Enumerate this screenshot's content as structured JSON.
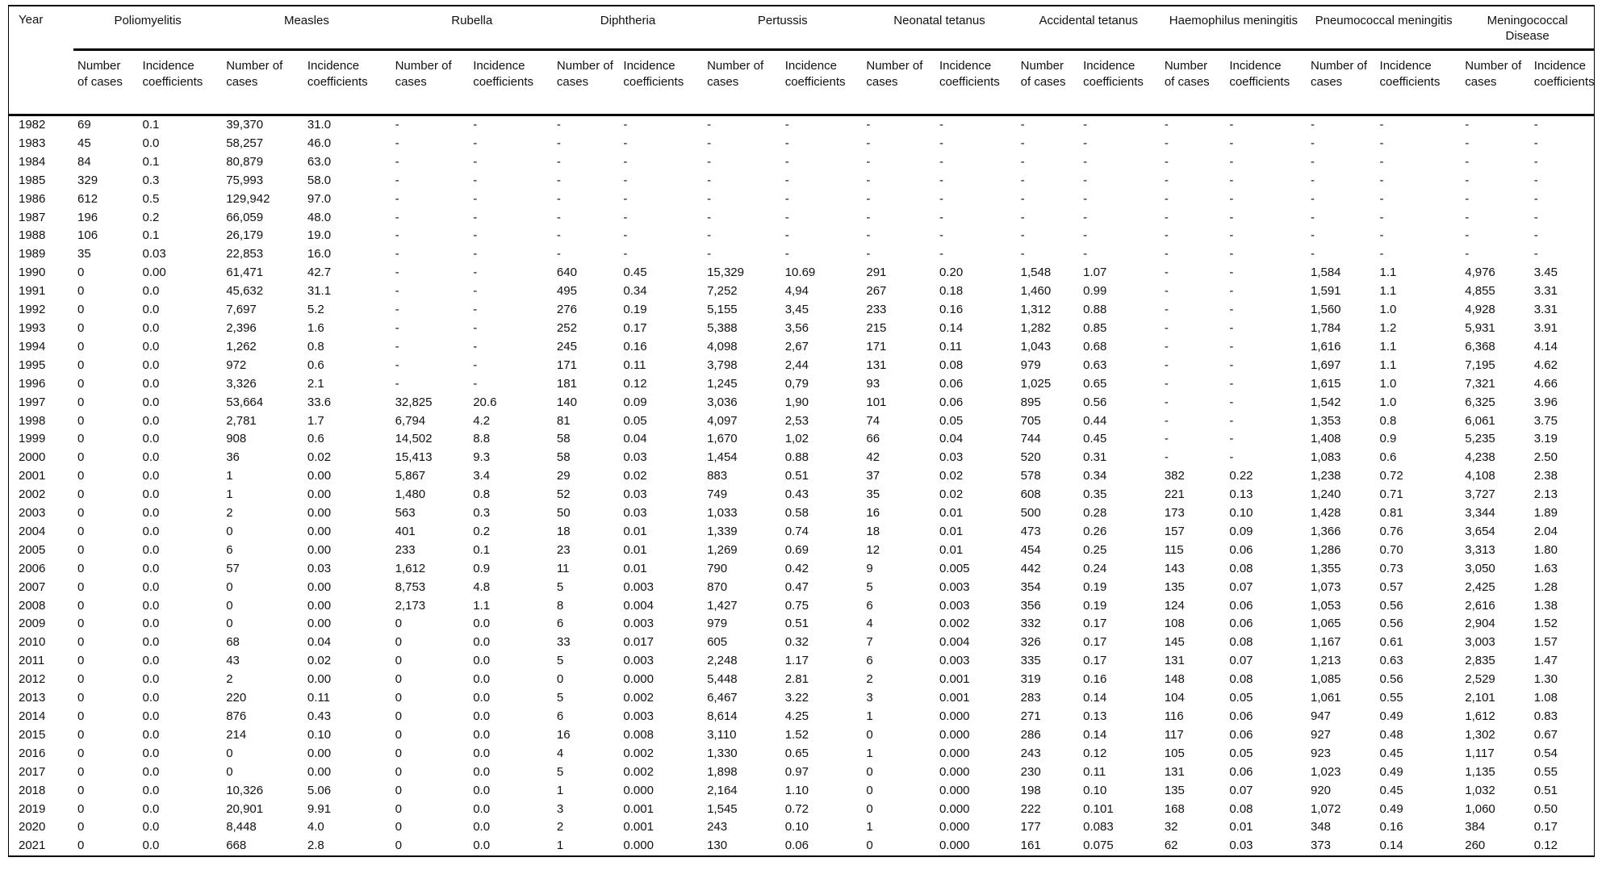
{
  "table": {
    "year_header": "Year",
    "groups": [
      {
        "label": "Poliomyelitis"
      },
      {
        "label": "Measles"
      },
      {
        "label": "Rubella"
      },
      {
        "label": "Diphtheria"
      },
      {
        "label": "Pertussis"
      },
      {
        "label": "Neonatal tetanus"
      },
      {
        "label": "Accidental tetanus"
      },
      {
        "label": "Haemophilus meningitis"
      },
      {
        "label": "Pneumococcal meningitis"
      },
      {
        "label": "Meningococcal Disease"
      }
    ],
    "subheaders": {
      "cases": "Number of cases",
      "incidence": "Incidence coefficients"
    },
    "rows": [
      [
        "1982",
        "69",
        "0.1",
        "39,370",
        "31.0",
        "-",
        "-",
        "-",
        "-",
        "-",
        "-",
        "-",
        "-",
        "-",
        "-",
        "-",
        "-",
        "-",
        "-",
        "-",
        "-"
      ],
      [
        "1983",
        "45",
        "0.0",
        "58,257",
        "46.0",
        "-",
        "-",
        "-",
        "-",
        "-",
        "-",
        "-",
        "-",
        "-",
        "-",
        "-",
        "-",
        "-",
        "-",
        "-",
        "-"
      ],
      [
        "1984",
        "84",
        "0.1",
        "80,879",
        "63.0",
        "-",
        "-",
        "-",
        "-",
        "-",
        "-",
        "-",
        "-",
        "-",
        "-",
        "-",
        "-",
        "-",
        "-",
        "-",
        "-"
      ],
      [
        "1985",
        "329",
        "0.3",
        "75,993",
        "58.0",
        "-",
        "-",
        "-",
        "-",
        "-",
        "-",
        "-",
        "-",
        "-",
        "-",
        "-",
        "-",
        "-",
        "-",
        "-",
        "-"
      ],
      [
        "1986",
        "612",
        "0.5",
        "129,942",
        "97.0",
        "-",
        "-",
        "-",
        "-",
        "-",
        "-",
        "-",
        "-",
        "-",
        "-",
        "-",
        "-",
        "-",
        "-",
        "-",
        "-"
      ],
      [
        "1987",
        "196",
        "0.2",
        "66,059",
        "48.0",
        "-",
        "-",
        "-",
        "-",
        "-",
        "-",
        "-",
        "-",
        "-",
        "-",
        "-",
        "-",
        "-",
        "-",
        "-",
        "-"
      ],
      [
        "1988",
        "106",
        "0.1",
        "26,179",
        "19.0",
        "-",
        "-",
        "-",
        "-",
        "-",
        "-",
        "-",
        "-",
        "-",
        "-",
        "-",
        "-",
        "-",
        "-",
        "-",
        "-"
      ],
      [
        "1989",
        "35",
        "0.03",
        "22,853",
        "16.0",
        "-",
        "-",
        "-",
        "-",
        "-",
        "-",
        "-",
        "-",
        "-",
        "-",
        "-",
        "-",
        "-",
        "-",
        "-",
        "-"
      ],
      [
        "1990",
        "0",
        "0.00",
        "61,471",
        "42.7",
        "-",
        "-",
        "640",
        "0.45",
        "15,329",
        "10.69",
        "291",
        "0.20",
        "1,548",
        "1.07",
        "-",
        "-",
        "1,584",
        "1.1",
        "4,976",
        "3.45"
      ],
      [
        "1991",
        "0",
        "0.0",
        "45,632",
        "31.1",
        "-",
        "-",
        "495",
        "0.34",
        "7,252",
        "4,94",
        "267",
        "0.18",
        "1,460",
        "0.99",
        "-",
        "-",
        "1,591",
        "1.1",
        "4,855",
        "3.31"
      ],
      [
        "1992",
        "0",
        "0.0",
        "7,697",
        "5.2",
        "-",
        "-",
        "276",
        "0.19",
        "5,155",
        "3,45",
        "233",
        "0.16",
        "1,312",
        "0.88",
        "-",
        "-",
        "1,560",
        "1.0",
        "4,928",
        "3.31"
      ],
      [
        "1993",
        "0",
        "0.0",
        "2,396",
        "1.6",
        "-",
        "-",
        "252",
        "0.17",
        "5,388",
        "3,56",
        "215",
        "0.14",
        "1,282",
        "0.85",
        "-",
        "-",
        "1,784",
        "1.2",
        "5,931",
        "3.91"
      ],
      [
        "1994",
        "0",
        "0.0",
        "1,262",
        "0.8",
        "-",
        "-",
        "245",
        "0.16",
        "4,098",
        "2,67",
        "171",
        "0.11",
        "1,043",
        "0.68",
        "-",
        "-",
        "1,616",
        "1.1",
        "6,368",
        "4.14"
      ],
      [
        "1995",
        "0",
        "0.0",
        "972",
        "0.6",
        "-",
        "-",
        "171",
        "0.11",
        "3,798",
        "2,44",
        "131",
        "0.08",
        "979",
        "0.63",
        "-",
        "-",
        "1,697",
        "1.1",
        "7,195",
        "4.62"
      ],
      [
        "1996",
        "0",
        "0.0",
        "3,326",
        "2.1",
        "-",
        "-",
        "181",
        "0.12",
        "1,245",
        "0,79",
        "93",
        "0.06",
        "1,025",
        "0.65",
        "-",
        "-",
        "1,615",
        "1.0",
        "7,321",
        "4.66"
      ],
      [
        "1997",
        "0",
        "0.0",
        "53,664",
        "33.6",
        "32,825",
        "20.6",
        "140",
        "0.09",
        "3,036",
        "1,90",
        "101",
        "0.06",
        "895",
        "0.56",
        "-",
        "-",
        "1,542",
        "1.0",
        "6,325",
        "3.96"
      ],
      [
        "1998",
        "0",
        "0.0",
        "2,781",
        "1.7",
        "6,794",
        "4.2",
        "81",
        "0.05",
        "4,097",
        "2,53",
        "74",
        "0.05",
        "705",
        "0.44",
        "-",
        "-",
        "1,353",
        "0.8",
        "6,061",
        "3.75"
      ],
      [
        "1999",
        "0",
        "0.0",
        "908",
        "0.6",
        "14,502",
        "8.8",
        "58",
        "0.04",
        "1,670",
        "1,02",
        "66",
        "0.04",
        "744",
        "0.45",
        "-",
        "-",
        "1,408",
        "0.9",
        "5,235",
        "3.19"
      ],
      [
        "2000",
        "0",
        "0.0",
        "36",
        "0.02",
        "15,413",
        "9.3",
        "58",
        "0.03",
        "1,454",
        "0.88",
        "42",
        "0.03",
        "520",
        "0.31",
        "-",
        "-",
        "1,083",
        "0.6",
        "4,238",
        "2.50"
      ],
      [
        "2001",
        "0",
        "0.0",
        "1",
        "0.00",
        "5,867",
        "3.4",
        "29",
        "0.02",
        "883",
        "0.51",
        "37",
        "0.02",
        "578",
        "0.34",
        "382",
        "0.22",
        "1,238",
        "0.72",
        "4,108",
        "2.38"
      ],
      [
        "2002",
        "0",
        "0.0",
        "1",
        "0.00",
        "1,480",
        "0.8",
        "52",
        "0.03",
        "749",
        "0.43",
        "35",
        "0.02",
        "608",
        "0.35",
        "221",
        "0.13",
        "1,240",
        "0.71",
        "3,727",
        "2.13"
      ],
      [
        "2003",
        "0",
        "0.0",
        "2",
        "0.00",
        "563",
        "0.3",
        "50",
        "0.03",
        "1,033",
        "0.58",
        "16",
        "0.01",
        "500",
        "0.28",
        "173",
        "0.10",
        "1,428",
        "0.81",
        "3,344",
        "1.89"
      ],
      [
        "2004",
        "0",
        "0.0",
        "0",
        "0.00",
        "401",
        "0.2",
        "18",
        "0.01",
        "1,339",
        "0.74",
        "18",
        "0.01",
        "473",
        "0.26",
        "157",
        "0.09",
        "1,366",
        "0.76",
        "3,654",
        "2.04"
      ],
      [
        "2005",
        "0",
        "0.0",
        "6",
        "0.00",
        "233",
        "0.1",
        "23",
        "0.01",
        "1,269",
        "0.69",
        "12",
        "0.01",
        "454",
        "0.25",
        "115",
        "0.06",
        "1,286",
        "0.70",
        "3,313",
        "1.80"
      ],
      [
        "2006",
        "0",
        "0.0",
        "57",
        "0.03",
        "1,612",
        "0.9",
        "11",
        "0.01",
        "790",
        "0.42",
        "9",
        "0.005",
        "442",
        "0.24",
        "143",
        "0.08",
        "1,355",
        "0.73",
        "3,050",
        "1.63"
      ],
      [
        "2007",
        "0",
        "0.0",
        "0",
        "0.00",
        "8,753",
        "4.8",
        "5",
        "0.003",
        "870",
        "0.47",
        "5",
        "0.003",
        "354",
        "0.19",
        "135",
        "0.07",
        "1,073",
        "0.57",
        "2,425",
        "1.28"
      ],
      [
        "2008",
        "0",
        "0.0",
        "0",
        "0.00",
        "2,173",
        "1.1",
        "8",
        "0.004",
        "1,427",
        "0.75",
        "6",
        "0.003",
        "356",
        "0.19",
        "124",
        "0.06",
        "1,053",
        "0.56",
        "2,616",
        "1.38"
      ],
      [
        "2009",
        "0",
        "0.0",
        "0",
        "0.00",
        "0",
        "0.0",
        "6",
        "0.003",
        "979",
        "0.51",
        "4",
        "0.002",
        "332",
        "0.17",
        "108",
        "0.06",
        "1,065",
        "0.56",
        "2,904",
        "1.52"
      ],
      [
        "2010",
        "0",
        "0.0",
        "68",
        "0.04",
        "0",
        "0.0",
        "33",
        "0.017",
        "605",
        "0.32",
        "7",
        "0.004",
        "326",
        "0.17",
        "145",
        "0.08",
        "1,167",
        "0.61",
        "3,003",
        "1.57"
      ],
      [
        "2011",
        "0",
        "0.0",
        "43",
        "0.02",
        "0",
        "0.0",
        "5",
        "0.003",
        "2,248",
        "1.17",
        "6",
        "0.003",
        "335",
        "0.17",
        "131",
        "0.07",
        "1,213",
        "0.63",
        "2,835",
        "1.47"
      ],
      [
        "2012",
        "0",
        "0.0",
        "2",
        "0.00",
        "0",
        "0.0",
        "0",
        "0.000",
        "5,448",
        "2.81",
        "2",
        "0.001",
        "319",
        "0.16",
        "148",
        "0.08",
        "1,085",
        "0.56",
        "2,529",
        "1.30"
      ],
      [
        "2013",
        "0",
        "0.0",
        "220",
        "0.11",
        "0",
        "0.0",
        "5",
        "0.002",
        "6,467",
        "3.22",
        "3",
        "0.001",
        "283",
        "0.14",
        "104",
        "0.05",
        "1,061",
        "0.55",
        "2,101",
        "1.08"
      ],
      [
        "2014",
        "0",
        "0.0",
        "876",
        "0.43",
        "0",
        "0.0",
        "6",
        "0.003",
        "8,614",
        "4.25",
        "1",
        "0.000",
        "271",
        "0.13",
        "116",
        "0.06",
        "947",
        "0.49",
        "1,612",
        "0.83"
      ],
      [
        "2015",
        "0",
        "0.0",
        "214",
        "0.10",
        "0",
        "0.0",
        "16",
        "0.008",
        "3,110",
        "1.52",
        "0",
        "0.000",
        "286",
        "0.14",
        "117",
        "0.06",
        "927",
        "0.48",
        "1,302",
        "0.67"
      ],
      [
        "2016",
        "0",
        "0.0",
        "0",
        "0.00",
        "0",
        "0.0",
        "4",
        "0.002",
        "1,330",
        "0.65",
        "1",
        "0.000",
        "243",
        "0.12",
        "105",
        "0.05",
        "923",
        "0.45",
        "1,117",
        "0.54"
      ],
      [
        "2017",
        "0",
        "0.0",
        "0",
        "0.00",
        "0",
        "0.0",
        "5",
        "0.002",
        "1,898",
        "0.97",
        "0",
        "0.000",
        "230",
        "0.11",
        "131",
        "0.06",
        "1,023",
        "0.49",
        "1,135",
        "0.55"
      ],
      [
        "2018",
        "0",
        "0.0",
        "10,326",
        "5.06",
        "0",
        "0.0",
        "1",
        "0.000",
        "2,164",
        "1.10",
        "0",
        "0.000",
        "198",
        "0.10",
        "135",
        "0.07",
        "920",
        "0.45",
        "1,032",
        "0.51"
      ],
      [
        "2019",
        "0",
        "0.0",
        "20,901",
        "9.91",
        "0",
        "0.0",
        "3",
        "0.001",
        "1,545",
        "0.72",
        "0",
        "0.000",
        "222",
        "0.101",
        "168",
        "0.08",
        "1,072",
        "0.49",
        "1,060",
        "0.50"
      ],
      [
        "2020",
        "0",
        "0.0",
        "8,448",
        "4.0",
        "0",
        "0.0",
        "2",
        "0.001",
        "243",
        "0.10",
        "1",
        "0.000",
        "177",
        "0.083",
        "32",
        "0.01",
        "348",
        "0.16",
        "384",
        "0.17"
      ],
      [
        "2021",
        "0",
        "0.0",
        "668",
        "2.8",
        "0",
        "0.0",
        "1",
        "0.000",
        "130",
        "0.06",
        "0",
        "0.000",
        "161",
        "0.075",
        "62",
        "0.03",
        "373",
        "0.14",
        "260",
        "0.12"
      ]
    ]
  }
}
